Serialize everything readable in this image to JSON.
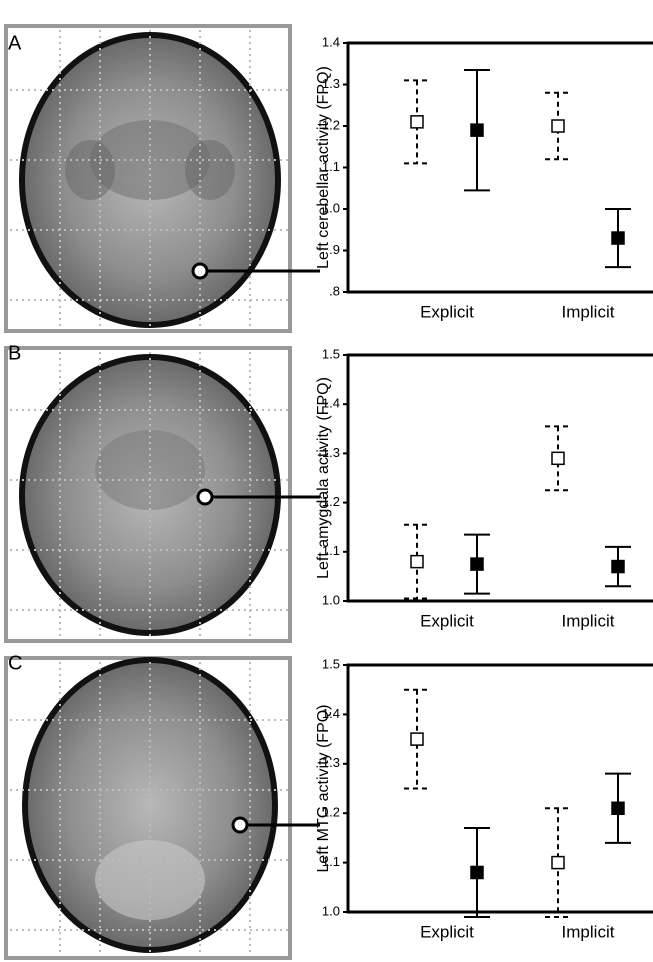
{
  "chart_data": [
    {
      "type": "errorbar",
      "label": "A",
      "ylabel": "Left cerebellar activity (FPQ)",
      "categories": [
        "Explicit",
        "Implicit"
      ],
      "series": [
        {
          "color": "#000000",
          "marker": "open",
          "linestyle": "dashed",
          "values": [
            1.21,
            1.2
          ],
          "errors": [
            0.1,
            0.08
          ]
        },
        {
          "color": "#000000",
          "marker": "filled",
          "linestyle": "solid",
          "values": [
            1.19,
            0.93
          ],
          "errors": [
            0.145,
            0.07
          ]
        }
      ],
      "ylim": [
        0.8,
        1.4
      ],
      "yticks": [
        {
          "value": 0.8,
          "label": ".8"
        },
        {
          "value": 0.9,
          "label": ".9"
        },
        {
          "value": 1.0,
          "label": "1.0"
        },
        1.1,
        1.2,
        1.3,
        1.4
      ]
    },
    {
      "type": "errorbar",
      "label": "B",
      "ylabel": "Left amygdala activity (FPQ)",
      "categories": [
        "Explicit",
        "Implicit"
      ],
      "series": [
        {
          "color": "#000000",
          "marker": "open",
          "linestyle": "dashed",
          "values": [
            1.08,
            1.29
          ],
          "errors": [
            0.075,
            0.065
          ]
        },
        {
          "color": "#000000",
          "marker": "filled",
          "linestyle": "solid",
          "values": [
            1.075,
            1.07
          ],
          "errors": [
            0.06,
            0.04
          ]
        }
      ],
      "ylim": [
        1.0,
        1.5
      ],
      "yticks": [
        {
          "value": 1.0,
          "label": "1.0"
        },
        1.1,
        1.2,
        1.3,
        1.4,
        1.5
      ]
    },
    {
      "type": "errorbar",
      "label": "C",
      "ylabel": "Left MTG activity (FPQ)",
      "categories": [
        "Explicit",
        "Implicit"
      ],
      "series": [
        {
          "color": "#000000",
          "marker": "open",
          "linestyle": "dashed",
          "values": [
            1.35,
            1.1
          ],
          "errors": [
            0.1,
            0.11
          ]
        },
        {
          "color": "#000000",
          "marker": "filled",
          "linestyle": "solid",
          "values": [
            1.08,
            1.21
          ],
          "errors": [
            0.09,
            0.07
          ]
        }
      ],
      "ylim": [
        1.0,
        1.5
      ],
      "yticks": [
        {
          "value": 1.0,
          "label": "1.0"
        },
        1.1,
        1.2,
        1.3,
        1.4,
        1.5
      ]
    }
  ]
}
